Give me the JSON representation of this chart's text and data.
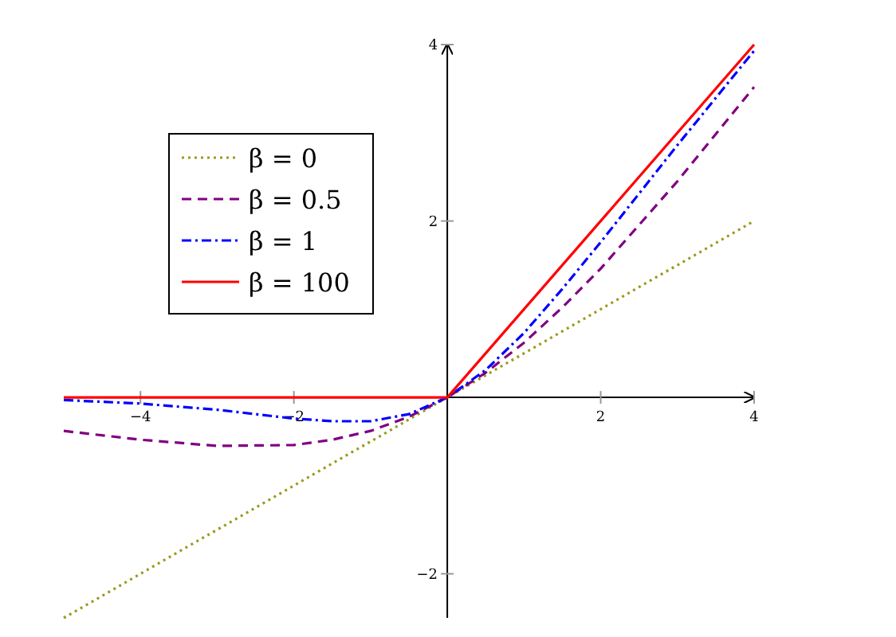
{
  "chart_data": {
    "type": "line",
    "xlim": [
      -5,
      4
    ],
    "ylim": [
      -2.5,
      4
    ],
    "xticks": [
      {
        "value": -4,
        "label": "−4"
      },
      {
        "value": -2,
        "label": "−2"
      },
      2,
      4
    ],
    "yticks": [
      {
        "value": -2,
        "label": "−2"
      },
      2,
      4
    ],
    "grid": false,
    "legend": "top left",
    "marker": "none",
    "series": [
      {
        "name": "β = 0",
        "color": "#9c9a1e",
        "line_style": "dotted",
        "x": [
          -5,
          4
        ],
        "values": [
          -2.5,
          2
        ]
      },
      {
        "name": "β = 0.5",
        "color": "#800080",
        "line_style": "dashed",
        "x": [
          -5,
          -4,
          -3,
          -2,
          -1.5,
          -1,
          -0.5,
          0,
          0.5,
          1,
          1.5,
          2,
          3,
          4
        ],
        "values": [
          -0.38,
          -0.48,
          -0.55,
          -0.54,
          -0.48,
          -0.38,
          -0.22,
          0,
          0.28,
          0.62,
          1.02,
          1.46,
          2.45,
          3.52
        ]
      },
      {
        "name": "β = 1",
        "color": "#0000ff",
        "line_style": "dashdot",
        "x": [
          -5,
          -4,
          -3,
          -2,
          -1.5,
          -1,
          -0.5,
          0,
          0.5,
          1,
          1.5,
          2,
          3,
          4
        ],
        "values": [
          -0.03,
          -0.07,
          -0.14,
          -0.24,
          -0.27,
          -0.27,
          -0.19,
          0,
          0.31,
          0.73,
          1.23,
          1.76,
          2.86,
          3.93
        ]
      },
      {
        "name": "β = 100",
        "color": "#ff0000",
        "line_style": "solid",
        "x": [
          -5,
          0,
          4
        ],
        "values": [
          0,
          0,
          4
        ]
      }
    ]
  }
}
